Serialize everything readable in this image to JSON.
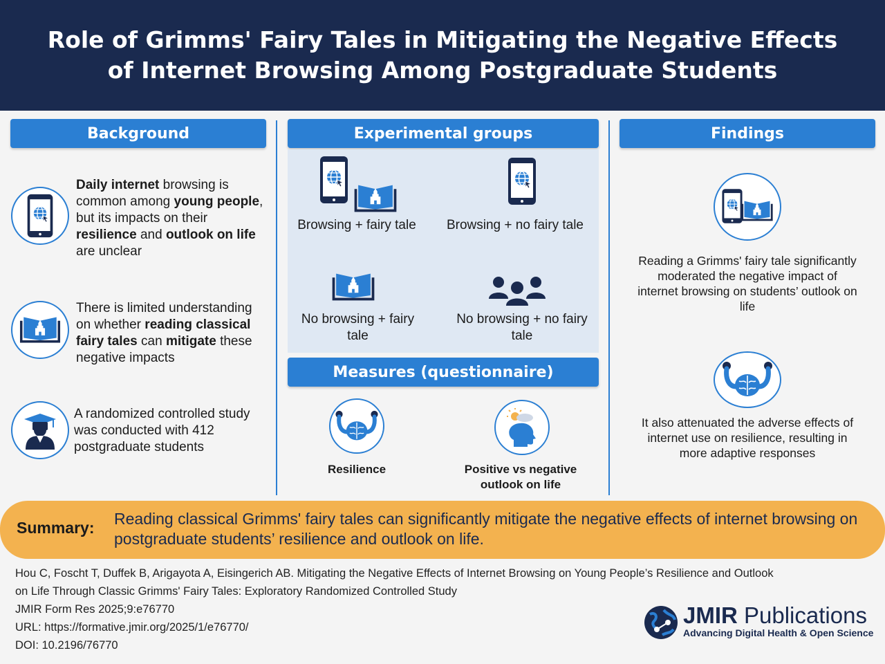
{
  "title": "Role of Grimms' Fairy Tales in Mitigating the Negative Effects of Internet Browsing Among Postgraduate Students",
  "background": {
    "heading": "Background",
    "item1": {
      "p1": "Daily internet",
      "p2": " browsing is common among ",
      "p3": "young people",
      "p4": ", but its impacts on their ",
      "p5": "resilience",
      "p6": " and ",
      "p7": "outlook on life",
      "p8": " are unclear"
    },
    "item2": {
      "p1": "There is limited understanding on whether ",
      "p2": "reading classical fairy tales",
      "p3": " can ",
      "p4": "mitigate",
      "p5": " these negative impacts"
    },
    "item3": "A randomized controlled study was conducted with 412 postgraduate students"
  },
  "groups": {
    "heading": "Experimental groups",
    "g1": "Browsing + fairy tale",
    "g2": "Browsing + no fairy tale",
    "g3": "No browsing + fairy tale",
    "g4": "No browsing + no fairy tale"
  },
  "measures": {
    "heading": "Measures (questionnaire)",
    "m1": "Resilience",
    "m2": "Positive vs negative outlook on life"
  },
  "findings": {
    "heading": "Findings",
    "f1": "Reading a Grimms' fairy tale significantly moderated the negative impact of internet browsing on students’ outlook on life",
    "f2": "It also attenuated the adverse effects of internet use on resilience, resulting in more adaptive responses"
  },
  "summary": {
    "label": "Summary:",
    "text": "Reading classical Grimms' fairy tales can significantly mitigate the negative effects of internet browsing on postgraduate students’ resilience and outlook on life."
  },
  "citation": {
    "line1": "Hou C, Foscht T, Duffek B, Arigayota A, Eisingerich AB. Mitigating the Negative Effects of Internet Browsing on Young People’s Resilience and Outlook",
    "line2": "on Life Through Classic Grimms' Fairy Tales: Exploratory Randomized Controlled Study",
    "line3": "JMIR Form Res 2025;9:e76770",
    "line4": "URL: https://formative.jmir.org/2025/1/e76770/",
    "line5": "DOI: 10.2196/76770"
  },
  "logo": {
    "brand": "JMIR",
    "brand_rest": " Publications",
    "tagline": "Advancing Digital Health & Open Science"
  },
  "colors": {
    "navy": "#1a2a4f",
    "blue": "#2b7fd3",
    "orange": "#f3b24f",
    "panel": "#dfe8f3"
  }
}
